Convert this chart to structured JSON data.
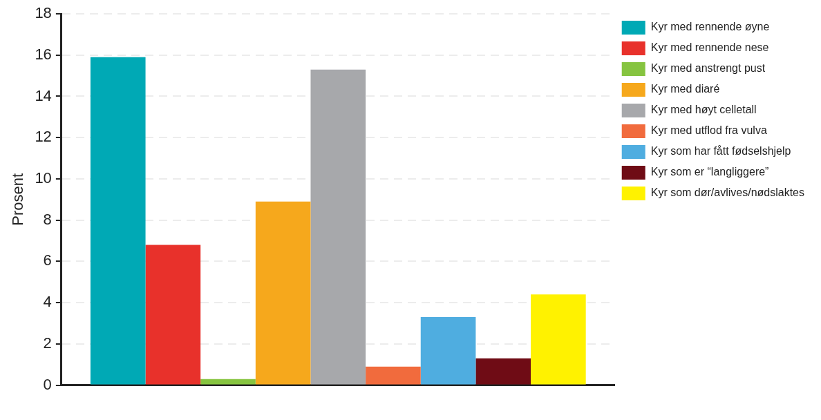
{
  "chart_data": {
    "type": "bar",
    "ylabel": "Prosent",
    "categories": [
      null
    ],
    "series": [
      {
        "name": "Kyr med rennende øyne",
        "color": "#00a9b5",
        "values": [
          15.9
        ]
      },
      {
        "name": "Kyr med rennende nese",
        "color": "#e8312b",
        "values": [
          6.8
        ]
      },
      {
        "name": "Kyr med anstrengt pust",
        "color": "#86c440",
        "values": [
          0.3
        ]
      },
      {
        "name": "Kyr med diaré",
        "color": "#f6a81c",
        "values": [
          8.9
        ]
      },
      {
        "name": "Kyr med høyt celletall",
        "color": "#a7a8ab",
        "values": [
          15.3
        ]
      },
      {
        "name": "Kyr med utflod fra vulva",
        "color": "#f16b3d",
        "values": [
          0.9
        ]
      },
      {
        "name": "Kyr som har fått fødselshjelp",
        "color": "#4fade0",
        "values": [
          3.3
        ]
      },
      {
        "name": "Kyr som er “langliggere”",
        "color": "#6f0c15",
        "values": [
          1.3
        ]
      },
      {
        "name": "Kyr som dør/avlives/nødslaktes",
        "color": "#fff200",
        "values": [
          4.4
        ]
      }
    ],
    "ylim": [
      0,
      18
    ],
    "yticks": [
      0,
      2,
      4,
      6,
      8,
      10,
      12,
      14,
      16,
      18
    ],
    "grid": "y",
    "legend": "right"
  }
}
